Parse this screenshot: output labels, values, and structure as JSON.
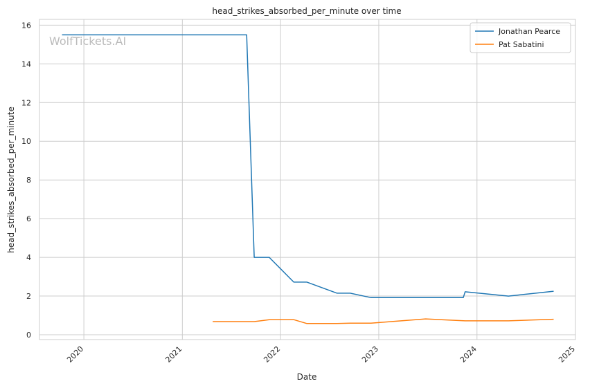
{
  "chart_data": {
    "type": "line",
    "title": "head_strikes_absorbed_per_minute over time",
    "xlabel": "Date",
    "ylabel": "head_strikes_absorbed_per_minute",
    "watermark": "WolfTickets.AI",
    "x_ticks": [
      "2020",
      "2021",
      "2022",
      "2023",
      "2024",
      "2025"
    ],
    "y_ticks": [
      "0",
      "2",
      "4",
      "6",
      "8",
      "10",
      "12",
      "14",
      "16"
    ],
    "xlim": [
      "2019-07-20",
      "2025-01-01"
    ],
    "ylim": [
      -0.25,
      16.3
    ],
    "grid": true,
    "legend_position": "top-right",
    "series": [
      {
        "name": "Jonathan Pearce",
        "color": "#1f77b4",
        "points": [
          [
            "2019-10-12",
            15.5
          ],
          [
            "2021-08-28",
            15.5
          ],
          [
            "2021-09-25",
            4.0
          ],
          [
            "2021-11-20",
            4.0
          ],
          [
            "2022-02-19",
            2.72
          ],
          [
            "2022-04-09",
            2.72
          ],
          [
            "2022-07-30",
            2.15
          ],
          [
            "2022-09-17",
            2.15
          ],
          [
            "2022-12-03",
            1.92
          ],
          [
            "2023-11-11",
            1.92
          ],
          [
            "2023-11-18",
            2.22
          ],
          [
            "2024-04-27",
            2.0
          ],
          [
            "2024-10-12",
            2.25
          ]
        ]
      },
      {
        "name": "Pat Sabatini",
        "color": "#ff7f0e",
        "points": [
          [
            "2021-04-24",
            0.68
          ],
          [
            "2021-09-25",
            0.68
          ],
          [
            "2021-11-20",
            0.78
          ],
          [
            "2022-02-19",
            0.78
          ],
          [
            "2022-04-09",
            0.58
          ],
          [
            "2022-07-30",
            0.58
          ],
          [
            "2022-09-17",
            0.6
          ],
          [
            "2022-12-03",
            0.6
          ],
          [
            "2023-06-24",
            0.82
          ],
          [
            "2023-11-18",
            0.72
          ],
          [
            "2024-04-27",
            0.72
          ],
          [
            "2024-10-12",
            0.8
          ]
        ]
      }
    ]
  }
}
